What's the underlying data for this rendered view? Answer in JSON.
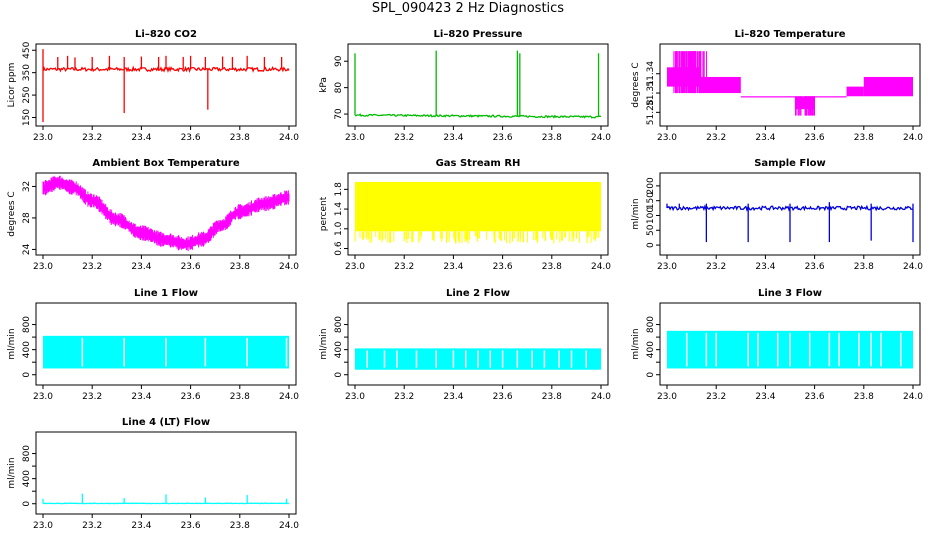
{
  "title": "SPL_090423  2 Hz Diagnostics",
  "chart_data": [
    {
      "id": "co2",
      "type": "line",
      "title": "Li–820 CO2",
      "ylabel": "Licor ppm",
      "color": "#ff0000",
      "xlim": [
        23.0,
        24.0
      ],
      "ylim": [
        130,
        460
      ],
      "yticks": [
        150,
        250,
        350,
        450
      ],
      "xticks": [
        23.0,
        23.2,
        23.4,
        23.6,
        23.8,
        24.0
      ],
      "xticklabels": [
        "23.0",
        "23.2",
        "23.4",
        "23.6",
        "23.8",
        "24.0"
      ],
      "yticklabels": [
        "150",
        "250",
        "350",
        "450"
      ],
      "baseline": 365,
      "noise": 8,
      "spikes": [
        [
          23.0,
          455
        ],
        [
          23.0,
          130
        ],
        [
          23.06,
          420
        ],
        [
          23.1,
          425
        ],
        [
          23.13,
          418
        ],
        [
          23.2,
          420
        ],
        [
          23.27,
          425
        ],
        [
          23.33,
          420
        ],
        [
          23.33,
          170
        ],
        [
          23.4,
          422
        ],
        [
          23.47,
          420
        ],
        [
          23.5,
          425
        ],
        [
          23.57,
          420
        ],
        [
          23.6,
          425
        ],
        [
          23.66,
          420
        ],
        [
          23.67,
          185
        ],
        [
          23.73,
          422
        ],
        [
          23.77,
          420
        ],
        [
          23.83,
          425
        ],
        [
          23.9,
          420
        ],
        [
          23.97,
          420
        ]
      ]
    },
    {
      "id": "pressure",
      "type": "line",
      "title": "Li–820 Pressure",
      "ylabel": "kPa",
      "color": "#00bb00",
      "xlim": [
        23.0,
        24.0
      ],
      "ylim": [
        67,
        95
      ],
      "yticks": [
        70,
        80,
        90
      ],
      "xticks": [
        23.0,
        23.2,
        23.4,
        23.6,
        23.8,
        24.0
      ],
      "xticklabels": [
        "23.0",
        "23.2",
        "23.4",
        "23.6",
        "23.8",
        "24.0"
      ],
      "yticklabels": [
        "70",
        "80",
        "90"
      ],
      "start": 69.6,
      "end": 68.9,
      "noise": 0.35,
      "spikes": [
        [
          23.0,
          93
        ],
        [
          23.33,
          94
        ],
        [
          23.66,
          94
        ],
        [
          23.67,
          93
        ],
        [
          23.99,
          93
        ]
      ]
    },
    {
      "id": "licor_temp",
      "type": "band",
      "title": "Li–820 Temperature",
      "ylabel": "degrees C",
      "color": "#ff00ff",
      "xlim": [
        23.0,
        24.0
      ],
      "ylim": [
        51.265,
        51.38
      ],
      "yticks": [
        51.28,
        51.31,
        51.34
      ],
      "xticks": [
        23.0,
        23.2,
        23.4,
        23.6,
        23.8,
        24.0
      ],
      "xticklabels": [
        "23.0",
        "23.2",
        "23.4",
        "23.6",
        "23.8",
        "24.0"
      ],
      "yticklabels": [
        "51.28",
        "51.31",
        "51.34"
      ],
      "segments": [
        [
          23.0,
          23.13,
          51.32,
          51.35
        ],
        [
          23.13,
          23.3,
          51.31,
          51.335
        ],
        [
          23.3,
          23.52,
          51.305,
          51.305
        ],
        [
          23.52,
          23.6,
          51.285,
          51.305
        ],
        [
          23.6,
          23.73,
          51.305,
          51.305
        ],
        [
          23.73,
          23.8,
          51.305,
          51.32
        ],
        [
          23.8,
          24.0,
          51.305,
          51.335
        ]
      ]
    },
    {
      "id": "box_temp",
      "type": "curve",
      "title": "Ambient Box Temperature",
      "ylabel": "degrees C",
      "color": "#ff00ff",
      "xlim": [
        23.0,
        24.0
      ],
      "ylim": [
        23.8,
        33.2
      ],
      "yticks": [
        24,
        28,
        32
      ],
      "xticks": [
        23.0,
        23.2,
        23.4,
        23.6,
        23.8,
        24.0
      ],
      "xticklabels": [
        "23.0",
        "23.2",
        "23.4",
        "23.6",
        "23.8",
        "24.0"
      ],
      "yticklabels": [
        "24",
        "28",
        "32"
      ],
      "bandwidth": 0.7,
      "points": [
        [
          23.0,
          31.8
        ],
        [
          23.06,
          32.5
        ],
        [
          23.12,
          31.9
        ],
        [
          23.2,
          30.2
        ],
        [
          23.3,
          27.8
        ],
        [
          23.4,
          26.1
        ],
        [
          23.5,
          25.2
        ],
        [
          23.58,
          24.7
        ],
        [
          23.65,
          25.3
        ],
        [
          23.72,
          27.0
        ],
        [
          23.8,
          28.8
        ],
        [
          23.9,
          29.8
        ],
        [
          24.0,
          30.6
        ]
      ]
    },
    {
      "id": "rh",
      "type": "band",
      "title": "Gas Stream RH",
      "ylabel": "percent",
      "color": "#ffff00",
      "xlim": [
        23.0,
        24.0
      ],
      "ylim": [
        0.55,
        2.05
      ],
      "yticks": [
        0.6,
        1.0,
        1.4,
        1.8
      ],
      "xticks": [
        23.0,
        23.2,
        23.4,
        23.6,
        23.8,
        24.0
      ],
      "xticklabels": [
        "23.0",
        "23.2",
        "23.4",
        "23.6",
        "23.8",
        "24.0"
      ],
      "yticklabels": [
        "0.6",
        "1.0",
        "1.4",
        "1.8"
      ],
      "low": 0.95,
      "high": 1.95,
      "dips": [
        [
          23.2,
          0.75
        ],
        [
          23.5,
          0.8
        ],
        [
          23.63,
          0.7
        ],
        [
          23.9,
          0.8
        ]
      ]
    },
    {
      "id": "sample_flow",
      "type": "line",
      "title": "Sample Flow",
      "ylabel": "ml/min",
      "color": "#0000dd",
      "xlim": [
        23.0,
        24.0
      ],
      "ylim": [
        -20,
        230
      ],
      "yticks": [
        0,
        50,
        100,
        150,
        200
      ],
      "xticks": [
        23.0,
        23.2,
        23.4,
        23.6,
        23.8,
        24.0
      ],
      "xticklabels": [
        "23.0",
        "23.2",
        "23.4",
        "23.6",
        "23.8",
        "24.0"
      ],
      "yticklabels": [
        "0",
        "50",
        "100",
        "150",
        "200"
      ],
      "baseline": 125,
      "noise": 6,
      "spikes": [
        [
          23.0,
          140
        ],
        [
          23.05,
          140
        ],
        [
          23.16,
          10
        ],
        [
          23.16,
          140
        ],
        [
          23.33,
          10
        ],
        [
          23.33,
          140
        ],
        [
          23.5,
          10
        ],
        [
          23.5,
          140
        ],
        [
          23.66,
          10
        ],
        [
          23.66,
          145
        ],
        [
          23.83,
          15
        ],
        [
          23.83,
          140
        ],
        [
          24.0,
          10
        ],
        [
          24.0,
          140
        ]
      ]
    },
    {
      "id": "line1",
      "type": "band",
      "title": "Line 1 Flow",
      "ylabel": "ml/min",
      "color": "#00ffff",
      "xlim": [
        23.0,
        24.0
      ],
      "ylim": [
        -100,
        1080
      ],
      "yticks": [
        0,
        200,
        400,
        600,
        800
      ],
      "xticks": [
        23.0,
        23.2,
        23.4,
        23.6,
        23.8,
        24.0
      ],
      "xticklabels": [
        "23.0",
        "23.2",
        "23.4",
        "23.6",
        "23.8",
        "24.0"
      ],
      "yticklabels": [
        "0",
        "400",
        "800"
      ],
      "low": 100,
      "high": 620,
      "gaps": [
        23.16,
        23.33,
        23.5,
        23.66,
        23.83,
        23.99
      ]
    },
    {
      "id": "line2",
      "type": "band",
      "title": "Line 2 Flow",
      "ylabel": "ml/min",
      "color": "#00ffff",
      "xlim": [
        23.0,
        24.0
      ],
      "ylim": [
        -100,
        1080
      ],
      "yticks": [
        0,
        200,
        400,
        600,
        800
      ],
      "xticks": [
        23.0,
        23.2,
        23.4,
        23.6,
        23.8,
        24.0
      ],
      "xticklabels": [
        "23.0",
        "23.2",
        "23.4",
        "23.6",
        "23.8",
        "24.0"
      ],
      "yticklabels": [
        "0",
        "400",
        "800"
      ],
      "low": 80,
      "high": 420,
      "gaps": [
        23.05,
        23.12,
        23.17,
        23.25,
        23.33,
        23.4,
        23.45,
        23.5,
        23.55,
        23.6,
        23.66,
        23.72,
        23.77,
        23.83,
        23.88,
        23.94
      ]
    },
    {
      "id": "line3",
      "type": "band",
      "title": "Line 3 Flow",
      "ylabel": "ml/min",
      "color": "#00ffff",
      "xlim": [
        23.0,
        24.0
      ],
      "ylim": [
        -100,
        1080
      ],
      "yticks": [
        0,
        200,
        400,
        600,
        800
      ],
      "xticks": [
        23.0,
        23.2,
        23.4,
        23.6,
        23.8,
        24.0
      ],
      "xticklabels": [
        "23.0",
        "23.2",
        "23.4",
        "23.6",
        "23.8",
        "24.0"
      ],
      "yticklabels": [
        "0",
        "400",
        "800"
      ],
      "low": 100,
      "high": 700,
      "gaps": [
        23.08,
        23.16,
        23.2,
        23.33,
        23.37,
        23.45,
        23.5,
        23.58,
        23.66,
        23.7,
        23.78,
        23.83,
        23.87,
        23.95
      ]
    },
    {
      "id": "line4",
      "type": "line",
      "title": "Line 4 (LT) Flow",
      "ylabel": "ml/min",
      "color": "#00ffff",
      "xlim": [
        23.0,
        24.0
      ],
      "ylim": [
        -100,
        1080
      ],
      "yticks": [
        0,
        200,
        400,
        600,
        800
      ],
      "xticks": [
        23.0,
        23.2,
        23.4,
        23.6,
        23.8,
        24.0
      ],
      "xticklabels": [
        "23.0",
        "23.2",
        "23.4",
        "23.6",
        "23.8",
        "24.0"
      ],
      "yticklabels": [
        "0",
        "400",
        "800"
      ],
      "baseline": 5,
      "noise": 4,
      "spikes": [
        [
          23.0,
          80
        ],
        [
          23.16,
          160
        ],
        [
          23.33,
          90
        ],
        [
          23.5,
          150
        ],
        [
          23.66,
          100
        ],
        [
          23.83,
          140
        ],
        [
          23.99,
          80
        ]
      ]
    }
  ]
}
